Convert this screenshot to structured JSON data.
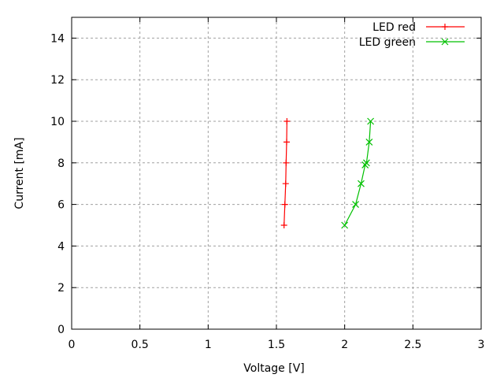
{
  "chart_data": {
    "type": "line",
    "title": "",
    "xlabel": "Voltage [V]",
    "ylabel": "Current [mA]",
    "xlim": [
      0,
      3
    ],
    "ylim": [
      0,
      15
    ],
    "xticks": [
      "0",
      "0.5",
      "1",
      "1.5",
      "2",
      "2.5",
      "3"
    ],
    "xtick_values": [
      0,
      0.5,
      1,
      1.5,
      2,
      2.5,
      3
    ],
    "yticks": [
      "0",
      "2",
      "4",
      "6",
      "8",
      "10",
      "12",
      "14"
    ],
    "ytick_values": [
      0,
      2,
      4,
      6,
      8,
      10,
      12,
      14
    ],
    "grid": true,
    "legend_position": "top-right",
    "series": [
      {
        "name": "LED red",
        "color": "#ff0000",
        "marker": "plus",
        "x": [
          1.556,
          1.562,
          1.568,
          1.571,
          1.575,
          1.577
        ],
        "y": [
          5,
          6,
          7,
          8,
          9,
          10
        ]
      },
      {
        "name": "LED green",
        "color": "#00c000",
        "marker": "cross",
        "x": [
          2.0,
          2.08,
          2.12,
          2.15,
          2.16,
          2.18,
          2.19
        ],
        "y": [
          5,
          6,
          7,
          7.9,
          8,
          9,
          10
        ]
      }
    ]
  }
}
